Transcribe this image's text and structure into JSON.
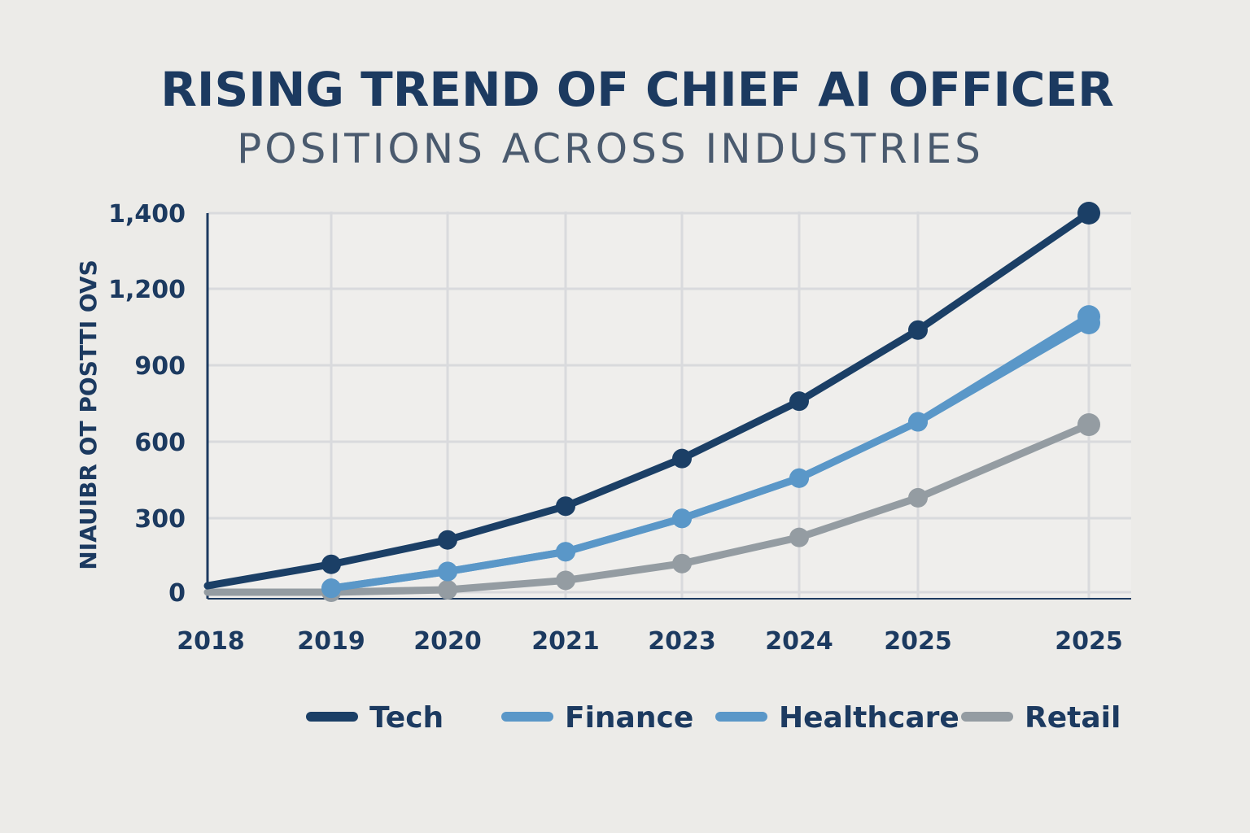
{
  "chart_data": {
    "type": "line",
    "title": "RISING TREND OF CHIEF AI OFFICER",
    "subtitle": "POSITIONS ACROSS INDUSTRIES",
    "xlabel": "",
    "ylabel": "NIAUIBR OT POSTTI OVS",
    "x": [
      "2018",
      "2019",
      "2020",
      "2021",
      "2023",
      "2024",
      "2025",
      "2025"
    ],
    "y_ticks": [
      0,
      300,
      600,
      900,
      1200,
      1400
    ],
    "y_tick_labels": [
      "0",
      "300",
      "600",
      "900",
      "1,200",
      "1,400"
    ],
    "ylim": [
      0,
      1400
    ],
    "grid": true,
    "legend_position": "bottom",
    "series": [
      {
        "name": "Tech",
        "color": "#1b3f66",
        "values": [
          26,
          113,
          212,
          347,
          534,
          759,
          1038,
          1409
        ]
      },
      {
        "name": "Finance",
        "color": "#5a97c8",
        "values": [
          null,
          16,
          84,
          164,
          299,
          457,
          678,
          1066
        ]
      },
      {
        "name": "Healthcare",
        "color": "#5a97c8",
        "values": [
          null,
          16,
          84,
          164,
          299,
          457,
          678,
          1091
        ]
      },
      {
        "name": "Retail",
        "color": "#949ca2",
        "values": [
          0,
          0,
          10,
          48,
          116,
          222,
          380,
          667
        ]
      }
    ]
  }
}
